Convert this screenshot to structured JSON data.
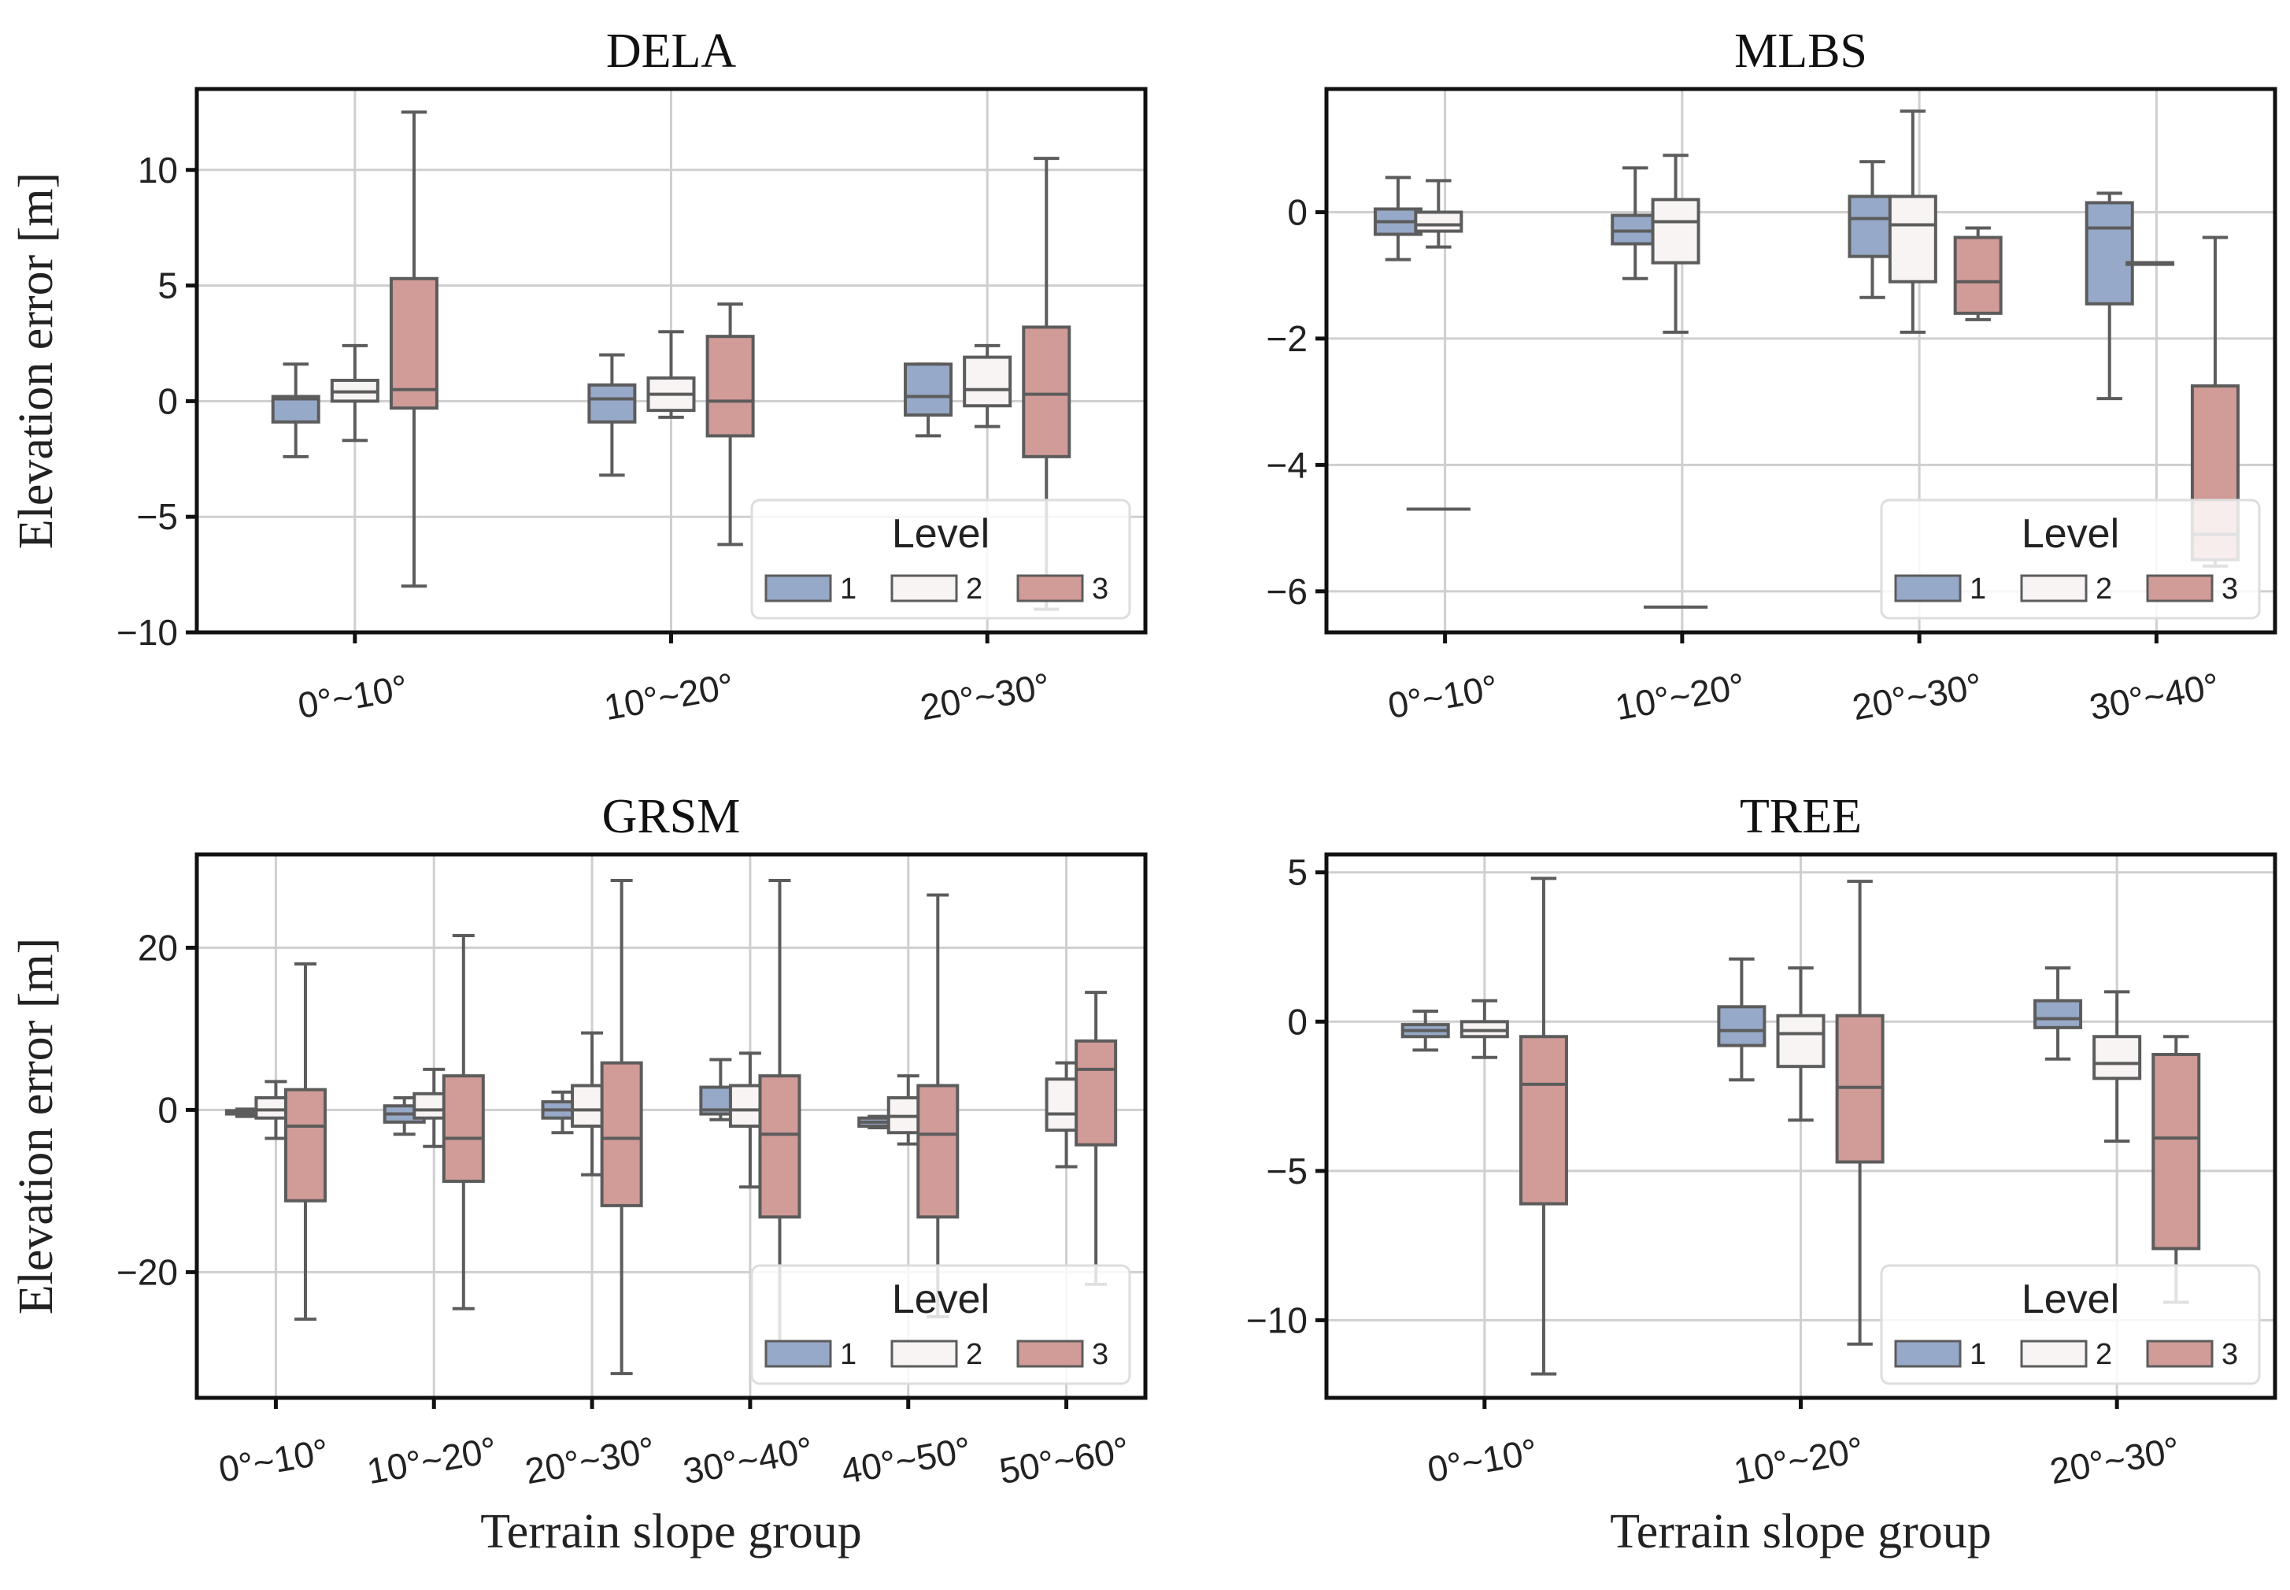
{
  "chart_data": [
    {
      "type": "box",
      "title": "DELA",
      "xlabel": "",
      "ylabel": "Elevation error [m]",
      "ylim": [
        -10,
        13.5
      ],
      "yticks": [
        -10,
        -5,
        0,
        5,
        10
      ],
      "ytick_labels": [
        "−10",
        "−5",
        "0",
        "5",
        "10"
      ],
      "categories": [
        "0°~10°",
        "10°~20°",
        "20°~30°"
      ],
      "legend": {
        "title": "Level",
        "position": "lower-right",
        "labels": [
          "1",
          "2",
          "3"
        ]
      },
      "series": [
        {
          "name": "1",
          "color": "#97a9c8",
          "boxes": [
            {
              "min": -2.4,
              "q1": -0.9,
              "median": 0.1,
              "q3": 0.2,
              "max": 1.6
            },
            {
              "min": -3.2,
              "q1": -0.9,
              "median": 0.1,
              "q3": 0.7,
              "max": 2.0
            },
            {
              "min": -1.5,
              "q1": -0.6,
              "median": 0.2,
              "q3": 1.6,
              "max": 1.6
            }
          ]
        },
        {
          "name": "2",
          "color": "#f8f4f3",
          "boxes": [
            {
              "min": -1.7,
              "q1": 0.0,
              "median": 0.4,
              "q3": 0.9,
              "max": 2.4
            },
            {
              "min": -0.7,
              "q1": -0.4,
              "median": 0.3,
              "q3": 1.0,
              "max": 3.0
            },
            {
              "min": -1.1,
              "q1": -0.2,
              "median": 0.5,
              "q3": 1.9,
              "max": 2.4
            }
          ]
        },
        {
          "name": "3",
          "color": "#d19b98",
          "boxes": [
            {
              "min": -8.0,
              "q1": -0.3,
              "median": 0.5,
              "q3": 5.3,
              "max": 12.5
            },
            {
              "min": -6.2,
              "q1": -1.5,
              "median": 0.0,
              "q3": 2.8,
              "max": 4.2
            },
            {
              "min": -9.0,
              "q1": -2.4,
              "median": 0.3,
              "q3": 3.2,
              "max": 10.5
            }
          ]
        }
      ]
    },
    {
      "type": "box",
      "title": "MLBS",
      "xlabel": "",
      "ylabel": "",
      "ylim": [
        -6.65,
        1.95
      ],
      "yticks": [
        -6,
        -4,
        -2,
        0
      ],
      "ytick_labels": [
        "−6",
        "−4",
        "−2",
        "0"
      ],
      "categories": [
        "0°~10°",
        "10°~20°",
        "20°~30°",
        "30°~40°"
      ],
      "legend": {
        "title": "Level",
        "position": "lower-right",
        "labels": [
          "1",
          "2",
          "3"
        ]
      },
      "series": [
        {
          "name": "1",
          "color": "#97a9c8",
          "boxes": [
            {
              "min": -0.75,
              "q1": -0.35,
              "median": -0.15,
              "q3": 0.05,
              "max": 0.55
            },
            {
              "min": -1.05,
              "q1": -0.5,
              "median": -0.3,
              "q3": -0.05,
              "max": 0.7
            },
            {
              "min": -1.35,
              "q1": -0.7,
              "median": -0.1,
              "q3": 0.25,
              "max": 0.8
            },
            {
              "min": -2.95,
              "q1": -1.45,
              "median": -0.25,
              "q3": 0.15,
              "max": 0.3
            }
          ]
        },
        {
          "name": "2",
          "color": "#f8f4f3",
          "boxes": [
            {
              "min": -0.55,
              "q1": -0.3,
              "median": -0.2,
              "q3": 0.0,
              "max": 0.5,
              "outliers": [
                -4.7
              ]
            },
            {
              "min": -1.9,
              "q1": -0.8,
              "median": -0.15,
              "q3": 0.2,
              "max": 0.9,
              "outliers": [
                -6.25
              ]
            },
            {
              "min": -1.9,
              "q1": -1.1,
              "median": -0.2,
              "q3": 0.25,
              "max": 1.6
            },
            {
              "min": -0.8,
              "q1": -0.8,
              "median": -0.8,
              "q3": -0.8,
              "max": -0.8
            }
          ]
        },
        {
          "name": "3",
          "color": "#d19b98",
          "boxes": null
        },
        {
          "name": "3",
          "color": "#d19b98",
          "boxes": null
        }
      ]
    },
    {
      "type": "box",
      "title": "GRSM",
      "xlabel": "Terrain slope group",
      "ylabel": "Elevation error [m]",
      "ylim": [
        -35.5,
        31.5
      ],
      "yticks": [
        -20,
        0,
        20
      ],
      "ytick_labels": [
        "−20",
        "0",
        "20"
      ],
      "categories": [
        "0°~10°",
        "10°~20°",
        "20°~30°",
        "30°~40°",
        "40°~50°",
        "50°~60°"
      ],
      "legend": {
        "title": "Level",
        "position": "lower-right",
        "labels": [
          "1",
          "2",
          "3"
        ]
      },
      "series": [
        {
          "name": "1",
          "color": "#97a9c8",
          "boxes": [
            {
              "min": -0.8,
              "q1": -0.5,
              "median": -0.3,
              "q3": -0.1,
              "max": 0.1
            },
            {
              "min": -3.0,
              "q1": -1.5,
              "median": -0.5,
              "q3": 0.5,
              "max": 1.5
            },
            {
              "min": -2.8,
              "q1": -1.0,
              "median": 0.0,
              "q3": 1.0,
              "max": 2.2
            },
            {
              "min": -1.2,
              "q1": -0.5,
              "median": 0.0,
              "q3": 2.8,
              "max": 6.2
            },
            {
              "min": -2.2,
              "q1": -2.0,
              "median": -1.5,
              "q3": -1.0,
              "max": -0.8
            },
            null
          ]
        },
        {
          "name": "2",
          "color": "#f8f4f3",
          "boxes": [
            {
              "min": -3.5,
              "q1": -1.0,
              "median": 0.0,
              "q3": 1.5,
              "max": 3.5
            },
            {
              "min": -4.5,
              "q1": -1.0,
              "median": 0.0,
              "q3": 2.0,
              "max": 5.0
            },
            {
              "min": -8.0,
              "q1": -2.0,
              "median": 0.0,
              "q3": 3.0,
              "max": 9.5
            },
            {
              "min": -9.5,
              "q1": -2.0,
              "median": 0.0,
              "q3": 3.0,
              "max": 7.0
            },
            {
              "min": -4.2,
              "q1": -2.8,
              "median": -0.8,
              "q3": 1.5,
              "max": 4.2
            },
            {
              "min": -7.0,
              "q1": -2.5,
              "median": -0.5,
              "q3": 3.8,
              "max": 5.8
            }
          ]
        },
        {
          "name": "3",
          "color": "#d19b98",
          "boxes": [
            {
              "min": -25.8,
              "q1": -11.2,
              "median": -2.0,
              "q3": 2.5,
              "max": 18.0
            },
            {
              "min": -24.5,
              "q1": -8.8,
              "median": -3.5,
              "q3": 4.2,
              "max": 21.5
            },
            {
              "min": -32.5,
              "q1": -11.8,
              "median": -3.5,
              "q3": 5.8,
              "max": 28.3
            },
            {
              "min": -31.5,
              "q1": -13.2,
              "median": -3.0,
              "q3": 4.2,
              "max": 28.3
            },
            {
              "min": -25.5,
              "q1": -13.2,
              "median": -3.0,
              "q3": 3.0,
              "max": 26.5
            },
            {
              "min": -21.5,
              "q1": -4.3,
              "median": 5.0,
              "q3": 8.5,
              "max": 14.5
            }
          ]
        }
      ]
    },
    {
      "type": "box",
      "title": "TREE",
      "xlabel": "Terrain slope group",
      "ylabel": "",
      "ylim": [
        -12.6,
        5.6
      ],
      "yticks": [
        -10,
        -5,
        0,
        5
      ],
      "ytick_labels": [
        "−10",
        "−5",
        "0",
        "5"
      ],
      "categories": [
        "0°~10°",
        "10°~20°",
        "20°~30°"
      ],
      "legend": {
        "title": "Level",
        "position": "lower-right",
        "labels": [
          "1",
          "2",
          "3"
        ]
      },
      "series": [
        {
          "name": "1",
          "color": "#97a9c8",
          "boxes": [
            {
              "min": -0.95,
              "q1": -0.5,
              "median": -0.3,
              "q3": -0.1,
              "max": 0.35
            },
            {
              "min": -1.95,
              "q1": -0.8,
              "median": -0.3,
              "q3": 0.5,
              "max": 2.1
            },
            {
              "min": -1.25,
              "q1": -0.2,
              "median": 0.1,
              "q3": 0.7,
              "max": 1.8
            }
          ]
        },
        {
          "name": "2",
          "color": "#f8f4f3",
          "boxes": [
            {
              "min": -1.2,
              "q1": -0.5,
              "median": -0.3,
              "q3": 0.0,
              "max": 0.7
            },
            {
              "min": -3.3,
              "q1": -1.5,
              "median": -0.4,
              "q3": 0.2,
              "max": 1.8
            },
            {
              "min": -4.0,
              "q1": -1.9,
              "median": -1.4,
              "q3": -0.5,
              "max": 1.0
            }
          ]
        },
        {
          "name": "3",
          "color": "#d19b98",
          "boxes": [
            {
              "min": -11.8,
              "q1": -6.1,
              "median": -2.1,
              "q3": -0.5,
              "max": 4.8
            },
            {
              "min": -10.8,
              "q1": -4.7,
              "median": -2.2,
              "q3": 0.2,
              "max": 4.7
            },
            {
              "min": -9.4,
              "q1": -7.6,
              "median": -3.9,
              "q3": -1.1,
              "max": -0.5
            }
          ]
        }
      ]
    }
  ],
  "mlbs_level3_boxes": [
    null,
    null,
    {
      "min": -1.7,
      "q1": -1.6,
      "median": -1.1,
      "q3": -0.4,
      "max": -0.25
    },
    {
      "min": -5.6,
      "q1": -5.5,
      "median": -5.1,
      "q3": -2.75,
      "max": -0.4
    }
  ]
}
